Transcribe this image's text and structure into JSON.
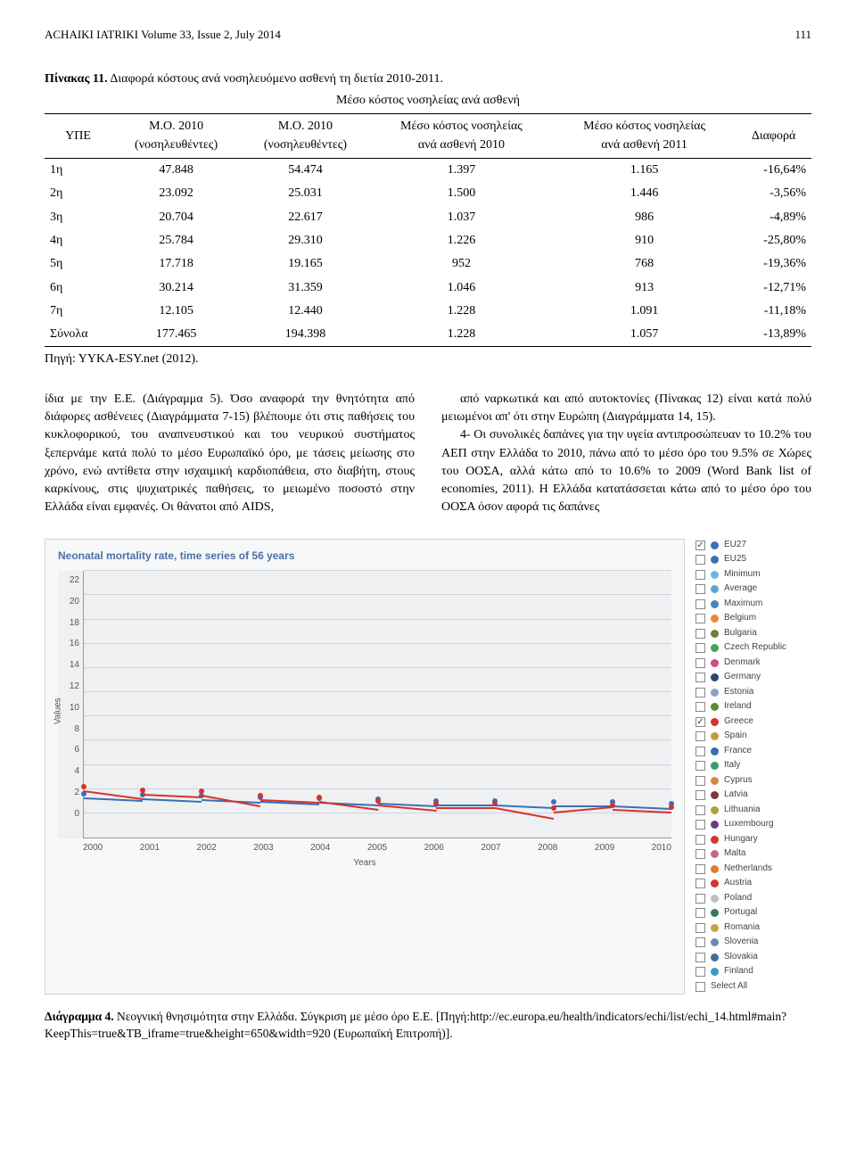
{
  "header": {
    "journal": "ACHAIKI IATRIKI Volume 33, Issue 2, July 2014",
    "page": "111"
  },
  "table": {
    "caption_prefix": "Πίνακας 11.",
    "caption_rest": " Διαφορά κόστους ανά νοσηλευόμενο ασθενή τη διετία 2010-2011.",
    "subtitle": "Μέσο κόστος νοσηλείας ανά ασθενή",
    "columns": [
      "ΥΠΕ",
      "Μ.Ο. 2010\n(νοσηλευθέντες)",
      "Μ.Ο. 2010\n(νοσηλευθέντες)",
      "Μέσο κόστος νοσηλείας\nανά ασθενή 2010",
      "Μέσο κόστος νοσηλείας\nανά ασθενή 2011",
      "Διαφορά"
    ],
    "rows": [
      [
        "1η",
        "47.848",
        "54.474",
        "1.397",
        "1.165",
        "-16,64%"
      ],
      [
        "2η",
        "23.092",
        "25.031",
        "1.500",
        "1.446",
        "-3,56%"
      ],
      [
        "3η",
        "20.704",
        "22.617",
        "1.037",
        "986",
        "-4,89%"
      ],
      [
        "4η",
        "25.784",
        "29.310",
        "1.226",
        "910",
        "-25,80%"
      ],
      [
        "5η",
        "17.718",
        "19.165",
        "952",
        "768",
        "-19,36%"
      ],
      [
        "6η",
        "30.214",
        "31.359",
        "1.046",
        "913",
        "-12,71%"
      ],
      [
        "7η",
        "12.105",
        "12.440",
        "1.228",
        "1.091",
        "-11,18%"
      ],
      [
        "Σύνολα",
        "177.465",
        "194.398",
        "1.228",
        "1.057",
        "-13,89%"
      ]
    ],
    "source": "Πηγή: ΥΥΚΑ-ESY.net (2012)."
  },
  "body_text": {
    "p1": "ίδια με την Ε.Ε. (Διάγραμμα 5). Όσο αναφορά την θνητότητα από διάφορες ασθένειες (Διαγράμματα 7-15) βλέπουμε ότι στις παθήσεις του κυκλοφορικού, του αναπνευστικού και του νευρικού συστήματος ξεπερνάμε κατά πολύ το μέσο Ευρωπαϊκό όρο, με τάσεις μείωσης στο χρόνο, ενώ αντίθετα στην ισχαιμική καρδιοπάθεια, στο διαβήτη, στους καρκίνους, στις ψυχιατρικές παθήσεις, το μειωμένο ποσοστό στην Ελλάδα είναι εμφανές. Οι θάνατοι από AIDS,",
    "p2": "από ναρκωτικά και από αυτοκτονίες (Πίνακας 12) είναι κατά πολύ μειωμένοι απ' ότι στην Ευρώπη (Διαγράμματα 14, 15).",
    "p3": "4- Οι συνολικές δαπάνες για την υγεία αντιπροσώπευαν το 10.2% του ΑΕΠ στην Ελλάδα το 2010, πάνω από το μέσο όρο του 9.5% σε Χώρες του ΟΟΣΑ, αλλά κάτω από το 10.6% το 2009 (Word Bank list of economies, 2011). Η Ελλάδα κατατάσσεται κάτω από το μέσο όρο του ΟΟΣΑ όσον αφορά τις δαπάνες"
  },
  "chart": {
    "type": "line",
    "title": "Neonatal mortality rate, time series of 56 years",
    "ylabel": "Values",
    "xlabel": "Years",
    "ylim": [
      0,
      22
    ],
    "ytick_step": 2,
    "x_categories": [
      "2000",
      "2001",
      "2002",
      "2003",
      "2004",
      "2005",
      "2006",
      "2007",
      "2008",
      "2009",
      "2010"
    ],
    "background_color": "#eef0f2",
    "grid_color": "#cfd4da",
    "series": [
      {
        "name": "EU27",
        "color": "#3b6fb6",
        "values": [
          3.2,
          3.1,
          3.0,
          2.9,
          2.8,
          2.7,
          2.6,
          2.6,
          2.5,
          2.5,
          2.4
        ],
        "checked": true
      },
      {
        "name": "Greece",
        "color": "#d7322d",
        "values": [
          3.8,
          3.5,
          3.4,
          3.0,
          2.9,
          2.6,
          2.4,
          2.4,
          2.0,
          2.2,
          2.1
        ],
        "checked": true
      }
    ],
    "legend_items": [
      {
        "label": "EU27",
        "color": "#3b6fb6",
        "checked": true
      },
      {
        "label": "EU25",
        "color": "#3b6fb6",
        "checked": false
      },
      {
        "label": "Minimum",
        "color": "#6fb5e6",
        "checked": false
      },
      {
        "label": "Average",
        "color": "#5fa3d8",
        "checked": false
      },
      {
        "label": "Maximum",
        "color": "#4a83c4",
        "checked": false
      },
      {
        "label": "Belgium",
        "color": "#e58b3a",
        "checked": false
      },
      {
        "label": "Bulgaria",
        "color": "#6e7f3a",
        "checked": false
      },
      {
        "label": "Czech Republic",
        "color": "#3aa655",
        "checked": false
      },
      {
        "label": "Denmark",
        "color": "#d04a8a",
        "checked": false
      },
      {
        "label": "Germany",
        "color": "#2a4a6a",
        "checked": false
      },
      {
        "label": "Estonia",
        "color": "#8aa0c8",
        "checked": false
      },
      {
        "label": "Ireland",
        "color": "#5a8a3a",
        "checked": false
      },
      {
        "label": "Greece",
        "color": "#d7322d",
        "checked": true
      },
      {
        "label": "Spain",
        "color": "#c79a3a",
        "checked": false
      },
      {
        "label": "France",
        "color": "#3a6ab0",
        "checked": false
      },
      {
        "label": "Italy",
        "color": "#3a9a6a",
        "checked": false
      },
      {
        "label": "Cyprus",
        "color": "#d08a3a",
        "checked": false
      },
      {
        "label": "Latvia",
        "color": "#7a3a3a",
        "checked": false
      },
      {
        "label": "Lithuania",
        "color": "#b0a03a",
        "checked": false
      },
      {
        "label": "Luxembourg",
        "color": "#6a3a8a",
        "checked": false
      },
      {
        "label": "Hungary",
        "color": "#d7322d",
        "checked": false
      },
      {
        "label": "Malta",
        "color": "#c06a8a",
        "checked": false
      },
      {
        "label": "Netherlands",
        "color": "#e57a2a",
        "checked": false
      },
      {
        "label": "Austria",
        "color": "#d7322d",
        "checked": false
      },
      {
        "label": "Poland",
        "color": "#c0c0c0",
        "checked": false
      },
      {
        "label": "Portugal",
        "color": "#3a7a5a",
        "checked": false
      },
      {
        "label": "Romania",
        "color": "#c7a53a",
        "checked": false
      },
      {
        "label": "Slovenia",
        "color": "#6a8ab0",
        "checked": false
      },
      {
        "label": "Slovakia",
        "color": "#4a6a9a",
        "checked": false
      },
      {
        "label": "Finland",
        "color": "#3a9ac0",
        "checked": false
      },
      {
        "label": "Select All",
        "color": null,
        "checked": false
      }
    ]
  },
  "figure_caption": {
    "prefix": "Διάγραμμα 4.",
    "rest": " Νεογνική θνησιμότητα στην Ελλάδα. Σύγκριση με μέσο όρο Ε.Ε. [Πηγή:http://ec.europa.eu/health/indicators/echi/list/echi_14.html#main?KeepThis=true&TB_iframe=true&height=650&width=920 (Ευρωπαϊκή Επιτροπή)]."
  }
}
